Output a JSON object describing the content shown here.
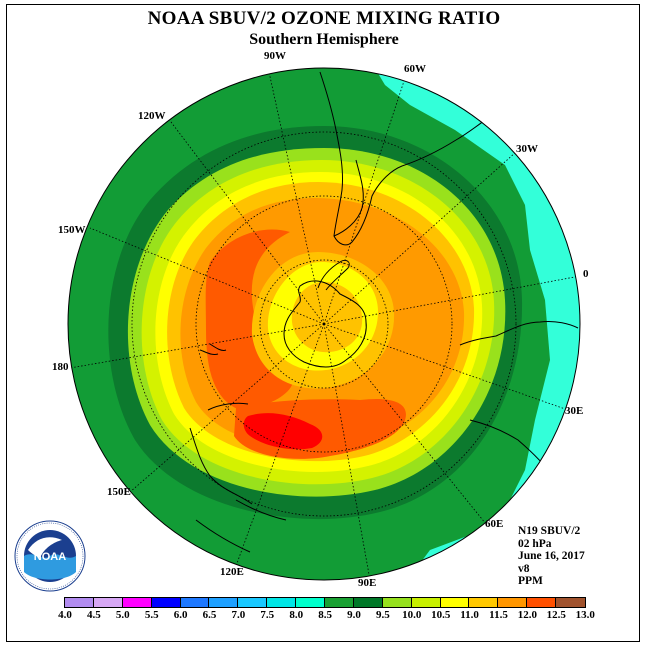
{
  "title": "NOAA SBUV/2 OZONE MIXING RATIO",
  "subtitle": "Southern Hemisphere",
  "longitude_labels": [
    {
      "id": "90w",
      "text": "90W"
    },
    {
      "id": "60w",
      "text": "60W"
    },
    {
      "id": "30w",
      "text": "30W"
    },
    {
      "id": "0",
      "text": "0"
    },
    {
      "id": "30e",
      "text": "30E"
    },
    {
      "id": "60e",
      "text": "60E"
    },
    {
      "id": "90e",
      "text": "90E"
    },
    {
      "id": "120e",
      "text": "120E"
    },
    {
      "id": "150e",
      "text": "150E"
    },
    {
      "id": "180",
      "text": "180"
    },
    {
      "id": "150w",
      "text": "150W"
    },
    {
      "id": "120w",
      "text": "120W"
    }
  ],
  "info": {
    "satellite": "N19 SBUV/2",
    "level": "02 hPa",
    "date": "June 16, 2017",
    "version": "v8",
    "units": "PPM"
  },
  "legend": {
    "ticks": [
      "4.0",
      "4.5",
      "5.0",
      "5.5",
      "6.0",
      "6.5",
      "7.0",
      "7.5",
      "8.0",
      "8.5",
      "9.0",
      "9.5",
      "10.0",
      "10.5",
      "11.0",
      "11.5",
      "12.0",
      "12.5",
      "13.0"
    ],
    "colors": [
      "#b28cf0",
      "#d7a8f5",
      "#ff00ff",
      "#0000ff",
      "#1e78ff",
      "#1ea0ff",
      "#19c8ff",
      "#00e6e6",
      "#00ffcc",
      "#19a032",
      "#007828",
      "#96e11e",
      "#c8f000",
      "#ffff00",
      "#ffc800",
      "#ff9600",
      "#ff5000",
      "#ff0000",
      "#a0522d"
    ]
  },
  "map_colors": {
    "c_7_5_8": "#33ffd9",
    "c_8_8_5": "#129c36",
    "c_8_5_9": "#0c7a2e",
    "c_9_9_5": "#99e11c",
    "c_9_5_10": "#d4f200",
    "c_10_10_5": "#ffff00",
    "c_10_5_11": "#ffc200",
    "c_11_11_5": "#ff9a00",
    "c_11_5_12": "#ff5a00",
    "c_12_12_5": "#ff0000"
  },
  "logo": {
    "name": "noaa-logo",
    "text": "NOAA"
  }
}
